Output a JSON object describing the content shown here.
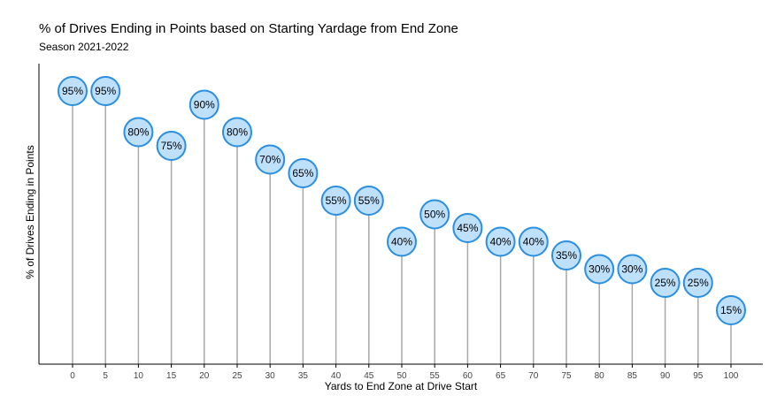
{
  "chart_data": {
    "type": "lollipop",
    "title": "% of Drives Ending in Points based on Starting Yardage from End Zone",
    "subtitle": "Season 2021-2022",
    "xlabel": "Yards to End Zone at Drive Start",
    "ylabel": "% of Drives Ending in Points",
    "x": [
      0,
      5,
      10,
      15,
      20,
      25,
      30,
      35,
      40,
      45,
      50,
      55,
      60,
      65,
      70,
      75,
      80,
      85,
      90,
      95,
      100
    ],
    "values": [
      95,
      95,
      80,
      75,
      90,
      80,
      70,
      65,
      55,
      55,
      40,
      50,
      45,
      40,
      40,
      35,
      30,
      30,
      25,
      25,
      15
    ],
    "labels": [
      "95%",
      "95%",
      "80%",
      "75%",
      "90%",
      "80%",
      "70%",
      "65%",
      "55%",
      "55%",
      "40%",
      "50%",
      "45%",
      "40%",
      "40%",
      "35%",
      "30%",
      "30%",
      "25%",
      "25%",
      "15%"
    ],
    "marker_fill": "#bfe0fb",
    "marker_stroke": "#2a8fe0",
    "stem_color": "#a8a8a8",
    "grid": false,
    "y_ticks_shown": false
  }
}
